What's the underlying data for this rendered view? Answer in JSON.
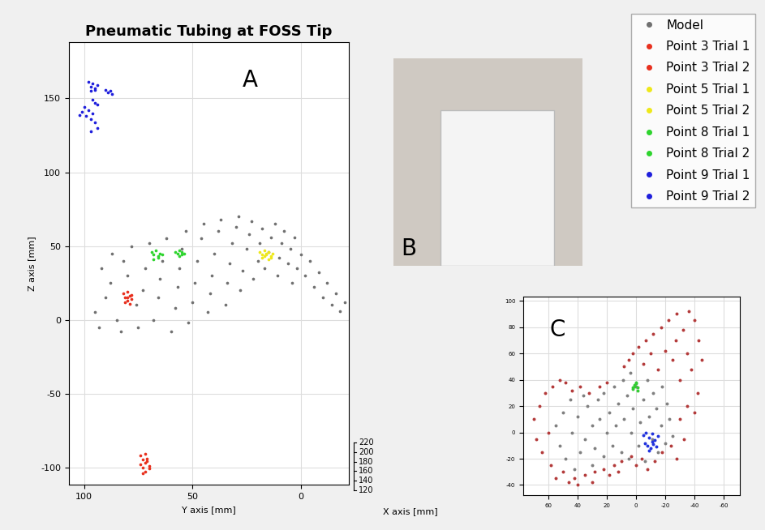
{
  "chart_data": [
    {
      "type": "scatter",
      "title": "Pneumatic Tubing at FOSS Tip",
      "xlabel": "Y axis [mm]",
      "ylabel": "Z axis [mm]",
      "zlabel": "X axis [mm]",
      "zticks": [
        120,
        140,
        160,
        180,
        200,
        220
      ],
      "annotations": [
        "A"
      ],
      "xlim": [
        107,
        -22
      ],
      "xticks": [
        100,
        50,
        0
      ],
      "ylim": [
        -112,
        188
      ],
      "yticks": [
        -100,
        -50,
        0,
        50,
        100,
        150
      ],
      "grid": true,
      "legend": "upper right",
      "series": [
        {
          "name": "Model",
          "color": "#707070",
          "marker": "point",
          "x": [
            95,
            93,
            90,
            88,
            92,
            87,
            85,
            83,
            80,
            82,
            78,
            76,
            75,
            73,
            72,
            70,
            68,
            66,
            65,
            64,
            62,
            60,
            58,
            57,
            56,
            55,
            53,
            52,
            50,
            49,
            48,
            46,
            45,
            43,
            42,
            41,
            40,
            38,
            37,
            35,
            34,
            33,
            32,
            30,
            29,
            28,
            27,
            25,
            24,
            23,
            22,
            20,
            19,
            18,
            17,
            15,
            14,
            12,
            11,
            10,
            9,
            8,
            6,
            5,
            4,
            3,
            2,
            0,
            -2,
            -4,
            -6,
            -8,
            -10,
            -12,
            -14,
            -16,
            -18,
            -20
          ],
          "y": [
            5,
            -5,
            15,
            25,
            35,
            45,
            0,
            -8,
            30,
            40,
            50,
            10,
            -5,
            20,
            35,
            52,
            0,
            15,
            28,
            40,
            55,
            -8,
            8,
            22,
            35,
            48,
            60,
            -2,
            12,
            25,
            40,
            55,
            65,
            5,
            18,
            30,
            45,
            60,
            68,
            10,
            25,
            38,
            52,
            63,
            70,
            20,
            33,
            48,
            58,
            67,
            28,
            40,
            52,
            62,
            35,
            46,
            56,
            65,
            30,
            42,
            52,
            60,
            38,
            48,
            25,
            56,
            35,
            44,
            30,
            40,
            22,
            32,
            15,
            25,
            10,
            18,
            6,
            12
          ]
        },
        {
          "name": "Point 3 Trial 1",
          "color": "#e8301e",
          "marker": "point",
          "x": [
            82,
            81,
            80,
            79,
            78,
            80,
            81,
            79,
            78,
            80
          ],
          "y": [
            18,
            15,
            13,
            16,
            14,
            19,
            12,
            11,
            17,
            15
          ]
        },
        {
          "name": "Point 3 Trial 2",
          "color": "#e8301e",
          "marker": "point",
          "x": [
            74,
            73,
            72,
            71,
            70,
            73,
            72,
            71,
            74,
            72,
            70,
            73
          ],
          "y": [
            -92,
            -95,
            -97,
            -94,
            -99,
            -100,
            -103,
            -96,
            -98,
            -91,
            -101,
            -104
          ]
        },
        {
          "name": "Point 5 Trial 1",
          "color": "#eee81a",
          "marker": "point",
          "x": [
            19,
            18,
            17,
            16,
            18,
            17
          ],
          "y": [
            46,
            44,
            47,
            45,
            42,
            43
          ]
        },
        {
          "name": "Point 5 Trial 2",
          "color": "#eee81a",
          "marker": "point",
          "x": [
            16,
            15,
            14,
            13,
            15,
            14
          ],
          "y": [
            44,
            46,
            42,
            45,
            41,
            43
          ]
        },
        {
          "name": "Point 8 Trial 1",
          "color": "#2ed42e",
          "marker": "point",
          "x": [
            69,
            68,
            67,
            66,
            65,
            68,
            66,
            64
          ],
          "y": [
            46,
            44,
            47,
            42,
            45,
            41,
            43,
            44
          ]
        },
        {
          "name": "Point 8 Trial 2",
          "color": "#2ed42e",
          "marker": "point",
          "x": [
            58,
            57,
            56,
            55,
            54,
            56,
            55
          ],
          "y": [
            46,
            45,
            47,
            44,
            45,
            43,
            46
          ]
        },
        {
          "name": "Point 9 Trial 1",
          "color": "#1f1fdc",
          "marker": "point",
          "x": [
            98,
            97,
            96,
            95,
            94,
            97,
            95,
            90,
            89,
            88,
            87,
            96,
            95,
            94
          ],
          "y": [
            161,
            158,
            160,
            157,
            159,
            155,
            156,
            156,
            154,
            155,
            153,
            149,
            147,
            146
          ]
        },
        {
          "name": "Point 9 Trial 2",
          "color": "#1f1fdc",
          "marker": "point",
          "x": [
            100,
            98,
            96,
            99,
            97,
            95,
            101,
            94,
            97,
            102
          ],
          "y": [
            144,
            142,
            140,
            138,
            136,
            134,
            141,
            130,
            128,
            139
          ]
        }
      ]
    },
    {
      "type": "image",
      "annotations": [
        "B"
      ]
    },
    {
      "type": "scatter",
      "annotations": [
        "C"
      ],
      "xlim": [
        77,
        -71
      ],
      "xticks": [
        60,
        40,
        20,
        0,
        -20,
        -40,
        -60
      ],
      "ylim": [
        -48,
        103
      ],
      "yticks": [
        -40,
        -20,
        0,
        20,
        40,
        60,
        80,
        100
      ],
      "grid": true,
      "series": [
        {
          "color": "#808080",
          "marker": "point",
          "x": [
            55,
            52,
            50,
            48,
            45,
            44,
            42,
            40,
            38,
            36,
            35,
            33,
            30,
            30,
            28,
            26,
            25,
            22,
            22,
            20,
            18,
            16,
            15,
            14,
            12,
            10,
            9,
            8,
            6,
            5,
            4,
            3,
            2,
            0,
            -2,
            -3,
            -5,
            -6,
            -8,
            -9,
            -11,
            -12,
            -14,
            -15,
            -17,
            -18,
            -20,
            -21,
            -23,
            -25
          ],
          "y": [
            5,
            -10,
            15,
            -20,
            25,
            0,
            -28,
            12,
            -15,
            28,
            -5,
            20,
            -25,
            5,
            -12,
            25,
            10,
            -18,
            30,
            0,
            15,
            -10,
            35,
            5,
            22,
            -15,
            40,
            10,
            28,
            -20,
            45,
            0,
            18,
            35,
            -10,
            8,
            25,
            -22,
            40,
            12,
            -5,
            30,
            18,
            -15,
            5,
            35,
            -8,
            22,
            10,
            -3
          ]
        },
        {
          "color": "#b33a3a",
          "marker": "point",
          "x": [
            70,
            68,
            66,
            64,
            62,
            60,
            58,
            57,
            55,
            52,
            50,
            48,
            46,
            44,
            42,
            40,
            38,
            35,
            32,
            30,
            28,
            25,
            22,
            20,
            18,
            15,
            12,
            10,
            8,
            5,
            3,
            2,
            0,
            -2,
            -4,
            -5,
            -7,
            -8,
            -10,
            -12,
            -13,
            -15,
            -17,
            -18,
            -20,
            -22,
            -24,
            -25,
            -27,
            -28,
            -30,
            -32,
            -33,
            -35,
            -36,
            -38,
            -40,
            -42,
            -43,
            -45,
            -30,
            -35,
            -40,
            -28
          ],
          "y": [
            10,
            -5,
            20,
            -15,
            30,
            0,
            -25,
            35,
            -35,
            40,
            -30,
            38,
            -38,
            32,
            -35,
            -40,
            35,
            -32,
            30,
            -38,
            -30,
            35,
            -28,
            38,
            -32,
            -25,
            -30,
            -22,
            50,
            55,
            -18,
            60,
            -25,
            65,
            -20,
            52,
            70,
            -28,
            60,
            75,
            -22,
            48,
            80,
            -15,
            62,
            85,
            -10,
            55,
            70,
            90,
            40,
            78,
            -5,
            60,
            92,
            48,
            85,
            30,
            70,
            55,
            10,
            20,
            15,
            -20
          ]
        },
        {
          "color": "#33cc33",
          "marker": "point",
          "x": [
            2,
            1,
            0,
            -1,
            0,
            1,
            -1,
            2
          ],
          "y": [
            33,
            35,
            37,
            34,
            38,
            36,
            32,
            34
          ]
        },
        {
          "color": "#2233dd",
          "marker": "point",
          "x": [
            -5,
            -7,
            -9,
            -11,
            -13,
            -15,
            -6,
            -8,
            -10,
            -12,
            -14,
            -9,
            -11
          ],
          "y": [
            -2,
            0,
            -4,
            -1,
            -6,
            -3,
            -8,
            -10,
            -12,
            -9,
            -11,
            -14,
            -7
          ]
        }
      ]
    }
  ]
}
